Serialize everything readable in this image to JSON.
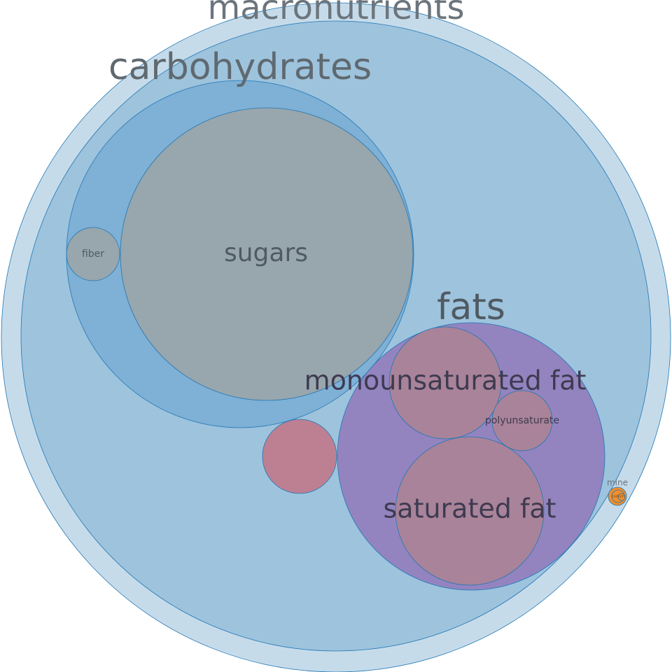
{
  "chart_data": {
    "type": "circle-packing",
    "title": "",
    "hierarchy": {
      "name": "",
      "children": [
        {
          "name": "macronutrients",
          "children": [
            {
              "name": "carbohydrates",
              "children": [
                {
                  "name": "sugars",
                  "value": 17.6
                },
                {
                  "name": "fiber",
                  "value": 0.6
                }
              ]
            },
            {
              "name": "fats",
              "children": [
                {
                  "name": "monounsaturated fat",
                  "value": 2.5
                },
                {
                  "name": "polyunsaturated fat",
                  "value": 0.7
                },
                {
                  "name": "saturated fat",
                  "value": 4.4
                }
              ]
            },
            {
              "name": "",
              "value": 1.1
            },
            {
              "name": "minerals",
              "children": [
                {
                  "name": "sodium",
                  "value": 0.01
                },
                {
                  "name": "",
                  "value": 0.005
                }
              ]
            }
          ]
        }
      ]
    },
    "labels": {
      "macronutrients": "macronutrients",
      "carbohydrates": "carbohydrates",
      "sugars": "sugars",
      "fiber": "fiber",
      "fats": "fats",
      "monounsaturated": "monounsaturated fat",
      "polyunsaturated": "polyunsaturate",
      "saturated": "saturated fat",
      "minerals": "mine",
      "sodium": "sodium"
    },
    "colors": {
      "outer": "#c6dbea",
      "macronutrients": "#9ec3dd",
      "carbohydrates": "#7fb0d5",
      "sugars": "#98a6ad",
      "fiber": "#98a6ad",
      "fats": "#9384c0",
      "fat_children": "#a98399",
      "pinkLeaf": "#bd8092",
      "minerals": "#f28e2b",
      "stroke": "#1f77b4",
      "labelDark": "#505a62",
      "labelPurple": "#3e3b52"
    }
  }
}
